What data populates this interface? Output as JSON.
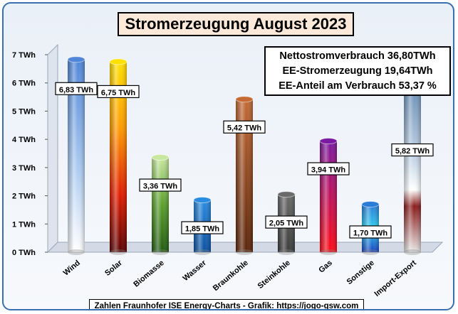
{
  "header": {
    "title": "Stromerzeugung August 2023"
  },
  "info": {
    "line1": "Nettostromverbrauch 36,80TWh",
    "line2": "EE-Stromerzeugung 19,64TWh",
    "line3": "EE-Anteil am Verbrauch 53,37 %"
  },
  "credit": "Zahlen Fraunhofer ISE  Energy-Charts - Grafik: https://jogo-gsw.com",
  "colors": {
    "frame": "#3a6fb0",
    "title_bg": "#fde9d9",
    "wind": "#6fa8e8",
    "solar": "#f7b500",
    "biomasse": "#5aa02c",
    "wasser": "#1f77d4",
    "braunkohle": "#9c4a1a",
    "steinkohle": "#555555",
    "gas": "#b0124a",
    "sonstige": "#1e9ad6",
    "import_export": "#9eb6cf"
  },
  "chart_data": {
    "type": "bar",
    "title": "Stromerzeugung August 2023",
    "xlabel": "",
    "ylabel": "",
    "ylim": [
      0,
      7
    ],
    "y_ticks": [
      "0 TWh",
      "1 TWh",
      "2 TWh",
      "3 TWh",
      "4 TWh",
      "5 TWh",
      "6 TWh",
      "7 TWh"
    ],
    "categories": [
      "Wind",
      "Solar",
      "Biomasse",
      "Wasser",
      "Braunkohle",
      "Steinkohle",
      "Gas",
      "Sonstige",
      "Import-Export"
    ],
    "values": [
      6.83,
      6.75,
      3.36,
      1.85,
      5.42,
      2.05,
      3.94,
      1.7,
      5.82
    ],
    "data_labels": [
      "6,83 TWh",
      "6,75 TWh",
      "3,36 TWh",
      "1,85 TWh",
      "5,42 TWh",
      "2,05 TWh",
      "3,94 TWh",
      "1,70 TWh",
      "5,82 TWh"
    ],
    "grid": false,
    "legend": "none"
  }
}
